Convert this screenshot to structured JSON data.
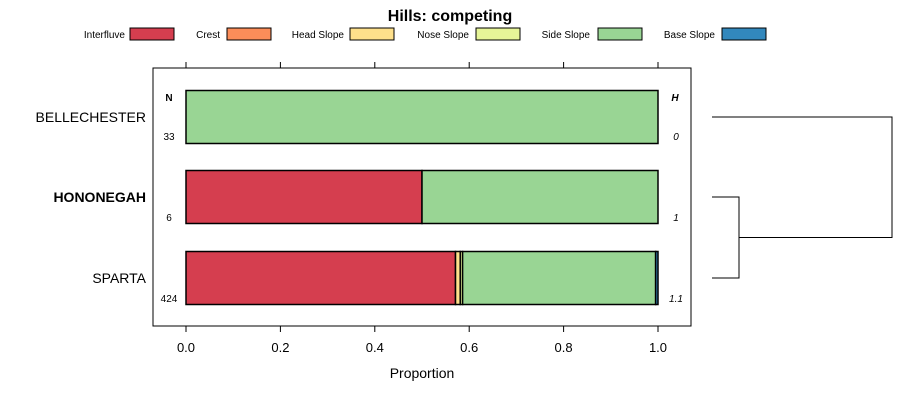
{
  "chart_data": {
    "type": "bar",
    "orientation": "horizontal",
    "stacked": true,
    "title": "Hills: competing",
    "xlabel": "Proportion",
    "ylabel": "",
    "xlim": [
      -0.07,
      1.07
    ],
    "xticks": [
      0,
      0.2,
      0.4,
      0.6,
      0.8,
      1
    ],
    "xtick_labels": [
      "0.0",
      "0.2",
      "0.4",
      "0.6",
      "0.8",
      "1.0"
    ],
    "legend_position": "top",
    "n_header": "N",
    "h_header": "H",
    "categories": [
      "BELLECHESTER",
      "HONONEGAH",
      "SPARTA"
    ],
    "highlighted_category": "HONONEGAH",
    "n_values": [
      "33",
      "6",
      "424"
    ],
    "h_values": [
      "0",
      "1",
      "1.1"
    ],
    "series": [
      {
        "name": "Interfluve",
        "color": "#D53E4F",
        "values": [
          0,
          0.5,
          0.571
        ]
      },
      {
        "name": "Crest",
        "color": "#FC8D59",
        "values": [
          0,
          0,
          0
        ]
      },
      {
        "name": "Head Slope",
        "color": "#FEE08B",
        "values": [
          0,
          0,
          0.01
        ]
      },
      {
        "name": "Nose Slope",
        "color": "#E6F598",
        "values": [
          0,
          0,
          0.005
        ]
      },
      {
        "name": "Side Slope",
        "color": "#99D594",
        "values": [
          1,
          0.5,
          0.409
        ]
      },
      {
        "name": "Base Slope",
        "color": "#3288BD",
        "values": [
          0,
          0,
          0.005
        ]
      }
    ],
    "dendrogram": {
      "labels": [
        "BELLECHESTER",
        "HONONEGAH",
        "SPARTA"
      ],
      "merges": [
        {
          "left": "HONONEGAH",
          "right": "SPARTA",
          "height": 0.15
        },
        {
          "left": "BELLECHESTER",
          "right": "HONONEGAH+SPARTA",
          "height": 1.0
        }
      ]
    }
  }
}
